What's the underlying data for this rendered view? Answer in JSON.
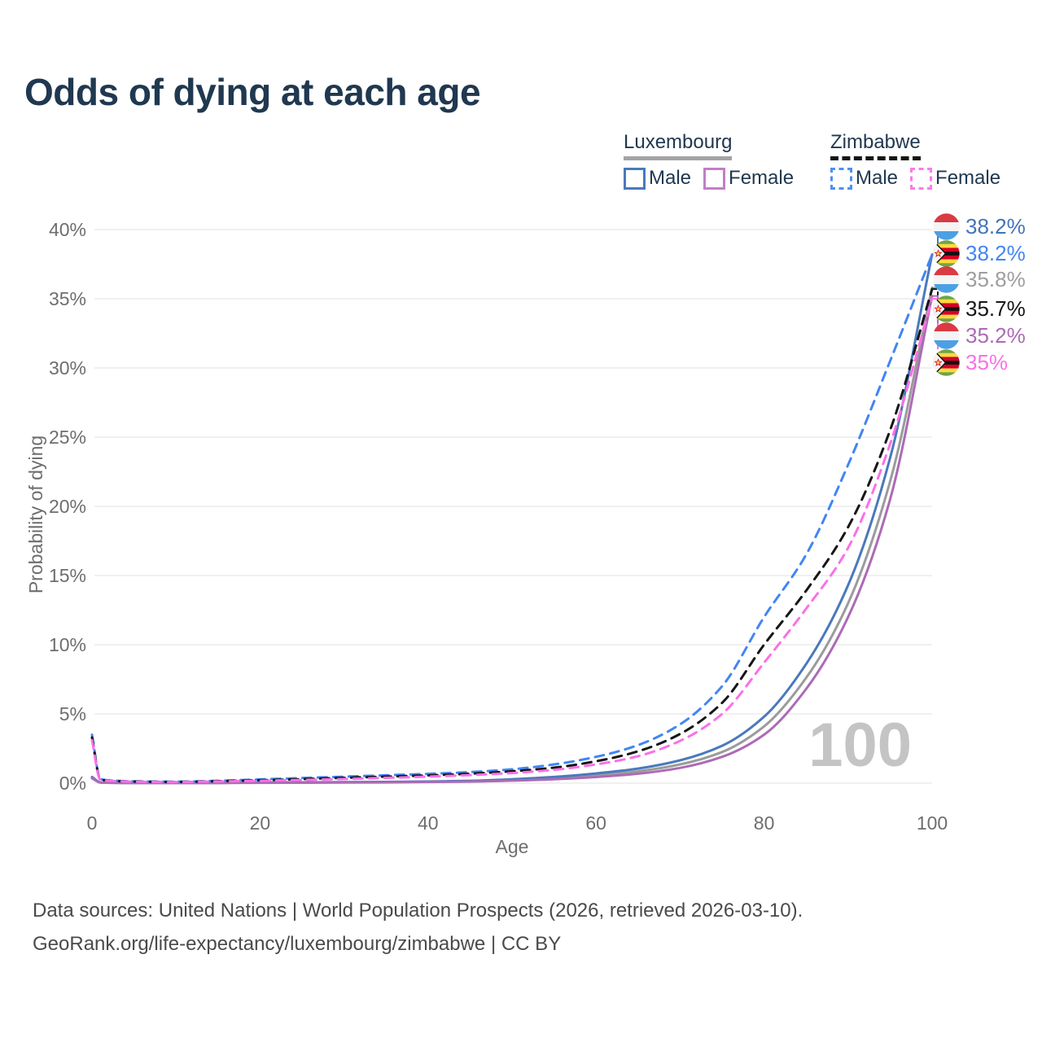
{
  "title": "Odds of dying at each age",
  "legend": {
    "groups": [
      {
        "country": "Luxembourg",
        "line_style": "solid",
        "underline_color": "#A3A3A3",
        "items": [
          {
            "label": "Male",
            "color": "#4A79BC"
          },
          {
            "label": "Female",
            "color": "#C07FC5"
          }
        ]
      },
      {
        "country": "Zimbabwe",
        "line_style": "dashed",
        "underline_color": "#161616",
        "items": [
          {
            "label": "Male",
            "color": "#4C90F0"
          },
          {
            "label": "Female",
            "color": "#FB7BEA"
          }
        ]
      }
    ]
  },
  "chart_data": {
    "type": "line",
    "title": "Odds of dying at each age",
    "xlabel": "Age",
    "ylabel": "Probability of dying",
    "xlim": [
      0,
      100
    ],
    "ylim_pct": [
      0,
      40
    ],
    "x_ticks": [
      0,
      20,
      40,
      60,
      80,
      100
    ],
    "y_ticks": [
      "0%",
      "5%",
      "10%",
      "15%",
      "20%",
      "25%",
      "30%",
      "35%",
      "40%"
    ],
    "grid": "horizontal",
    "legend_position": "top-right",
    "watermark": "100",
    "ages": [
      0,
      1,
      2,
      5,
      10,
      15,
      20,
      25,
      30,
      35,
      40,
      45,
      50,
      55,
      60,
      65,
      70,
      75,
      80,
      85,
      90,
      95,
      100
    ],
    "series": [
      {
        "id": "lux_total",
        "name": "Luxembourg (total)",
        "country": "Luxembourg",
        "flag": "luxembourg-flag-icon",
        "dashed": false,
        "color": "#9B9B9B",
        "end_label": "35.8%",
        "end_label_color": "#9E9E9E",
        "values": [
          0.4,
          0.045,
          0.027,
          0.01,
          0.009,
          0.016,
          0.04,
          0.047,
          0.057,
          0.073,
          0.1,
          0.14,
          0.22,
          0.35,
          0.55,
          0.85,
          1.35,
          2.25,
          4.1,
          7.6,
          13.0,
          21.8,
          35.8
        ]
      },
      {
        "id": "lux_male",
        "name": "Luxembourg Male",
        "country": "Luxembourg",
        "flag": "luxembourg-flag-icon",
        "dashed": false,
        "color": "#4A79BC",
        "end_label": "38.2%",
        "end_label_color": "#4374B9",
        "values": [
          0.45,
          0.05,
          0.03,
          0.012,
          0.01,
          0.02,
          0.05,
          0.06,
          0.07,
          0.09,
          0.12,
          0.17,
          0.28,
          0.45,
          0.7,
          1.05,
          1.65,
          2.7,
          4.8,
          8.6,
          14.3,
          23.5,
          38.2
        ]
      },
      {
        "id": "lux_female",
        "name": "Luxembourg Female",
        "country": "Luxembourg",
        "flag": "luxembourg-flag-icon",
        "dashed": false,
        "color": "#AC6BB5",
        "end_label": "35.2%",
        "end_label_color": "#AC6BB5",
        "values": [
          0.35,
          0.04,
          0.024,
          0.009,
          0.008,
          0.013,
          0.026,
          0.032,
          0.04,
          0.053,
          0.08,
          0.11,
          0.18,
          0.28,
          0.44,
          0.68,
          1.1,
          1.9,
          3.5,
          6.8,
          12.0,
          20.5,
          35.2
        ]
      },
      {
        "id": "zim_male",
        "name": "Zimbabwe Male",
        "country": "Zimbabwe",
        "flag": "zimbabwe-flag-icon",
        "dashed": true,
        "color": "#4285F4",
        "end_label": "38.2%",
        "end_label_color": "#4285F4",
        "values": [
          3.5,
          0.3,
          0.2,
          0.13,
          0.11,
          0.17,
          0.27,
          0.37,
          0.47,
          0.57,
          0.67,
          0.8,
          1.0,
          1.35,
          1.9,
          2.75,
          4.25,
          7.0,
          12.0,
          16.5,
          23.0,
          30.5,
          38.2
        ]
      },
      {
        "id": "zim_total",
        "name": "Zimbabwe (total)",
        "country": "Zimbabwe",
        "flag": "zimbabwe-flag-icon",
        "dashed": true,
        "color": "#161616",
        "end_label": "35.7%",
        "end_label_color": "#161616",
        "values": [
          3.3,
          0.27,
          0.18,
          0.11,
          0.09,
          0.14,
          0.21,
          0.29,
          0.38,
          0.47,
          0.56,
          0.68,
          0.86,
          1.12,
          1.58,
          2.3,
          3.55,
          5.8,
          10.0,
          13.9,
          18.5,
          25.5,
          35.7
        ]
      },
      {
        "id": "zim_female",
        "name": "Zimbabwe Female",
        "country": "Zimbabwe",
        "flag": "zimbabwe-flag-icon",
        "dashed": true,
        "color": "#FB70E8",
        "end_label": "35%",
        "end_label_color": "#FB70E8",
        "values": [
          3.1,
          0.25,
          0.17,
          0.1,
          0.08,
          0.12,
          0.17,
          0.23,
          0.3,
          0.38,
          0.47,
          0.58,
          0.73,
          0.96,
          1.35,
          1.95,
          3.05,
          5.0,
          8.7,
          12.6,
          17.0,
          24.5,
          35.0
        ]
      }
    ],
    "end_label_order": [
      "lux_male",
      "zim_male",
      "lux_total",
      "zim_total",
      "lux_female",
      "zim_female"
    ]
  },
  "colors": {
    "title": "#203850",
    "axis_text": "#6E6E6E",
    "grid": "#ECECEC",
    "watermark": "#C4C4C4",
    "footer": "#4A4A4A"
  },
  "footer": {
    "line1": "Data sources: United Nations | World Population Prospects (2026, retrieved 2026-03-10).",
    "line2": "GeoRank.org/life-expectancy/luxembourg/zimbabwe | CC BY"
  }
}
